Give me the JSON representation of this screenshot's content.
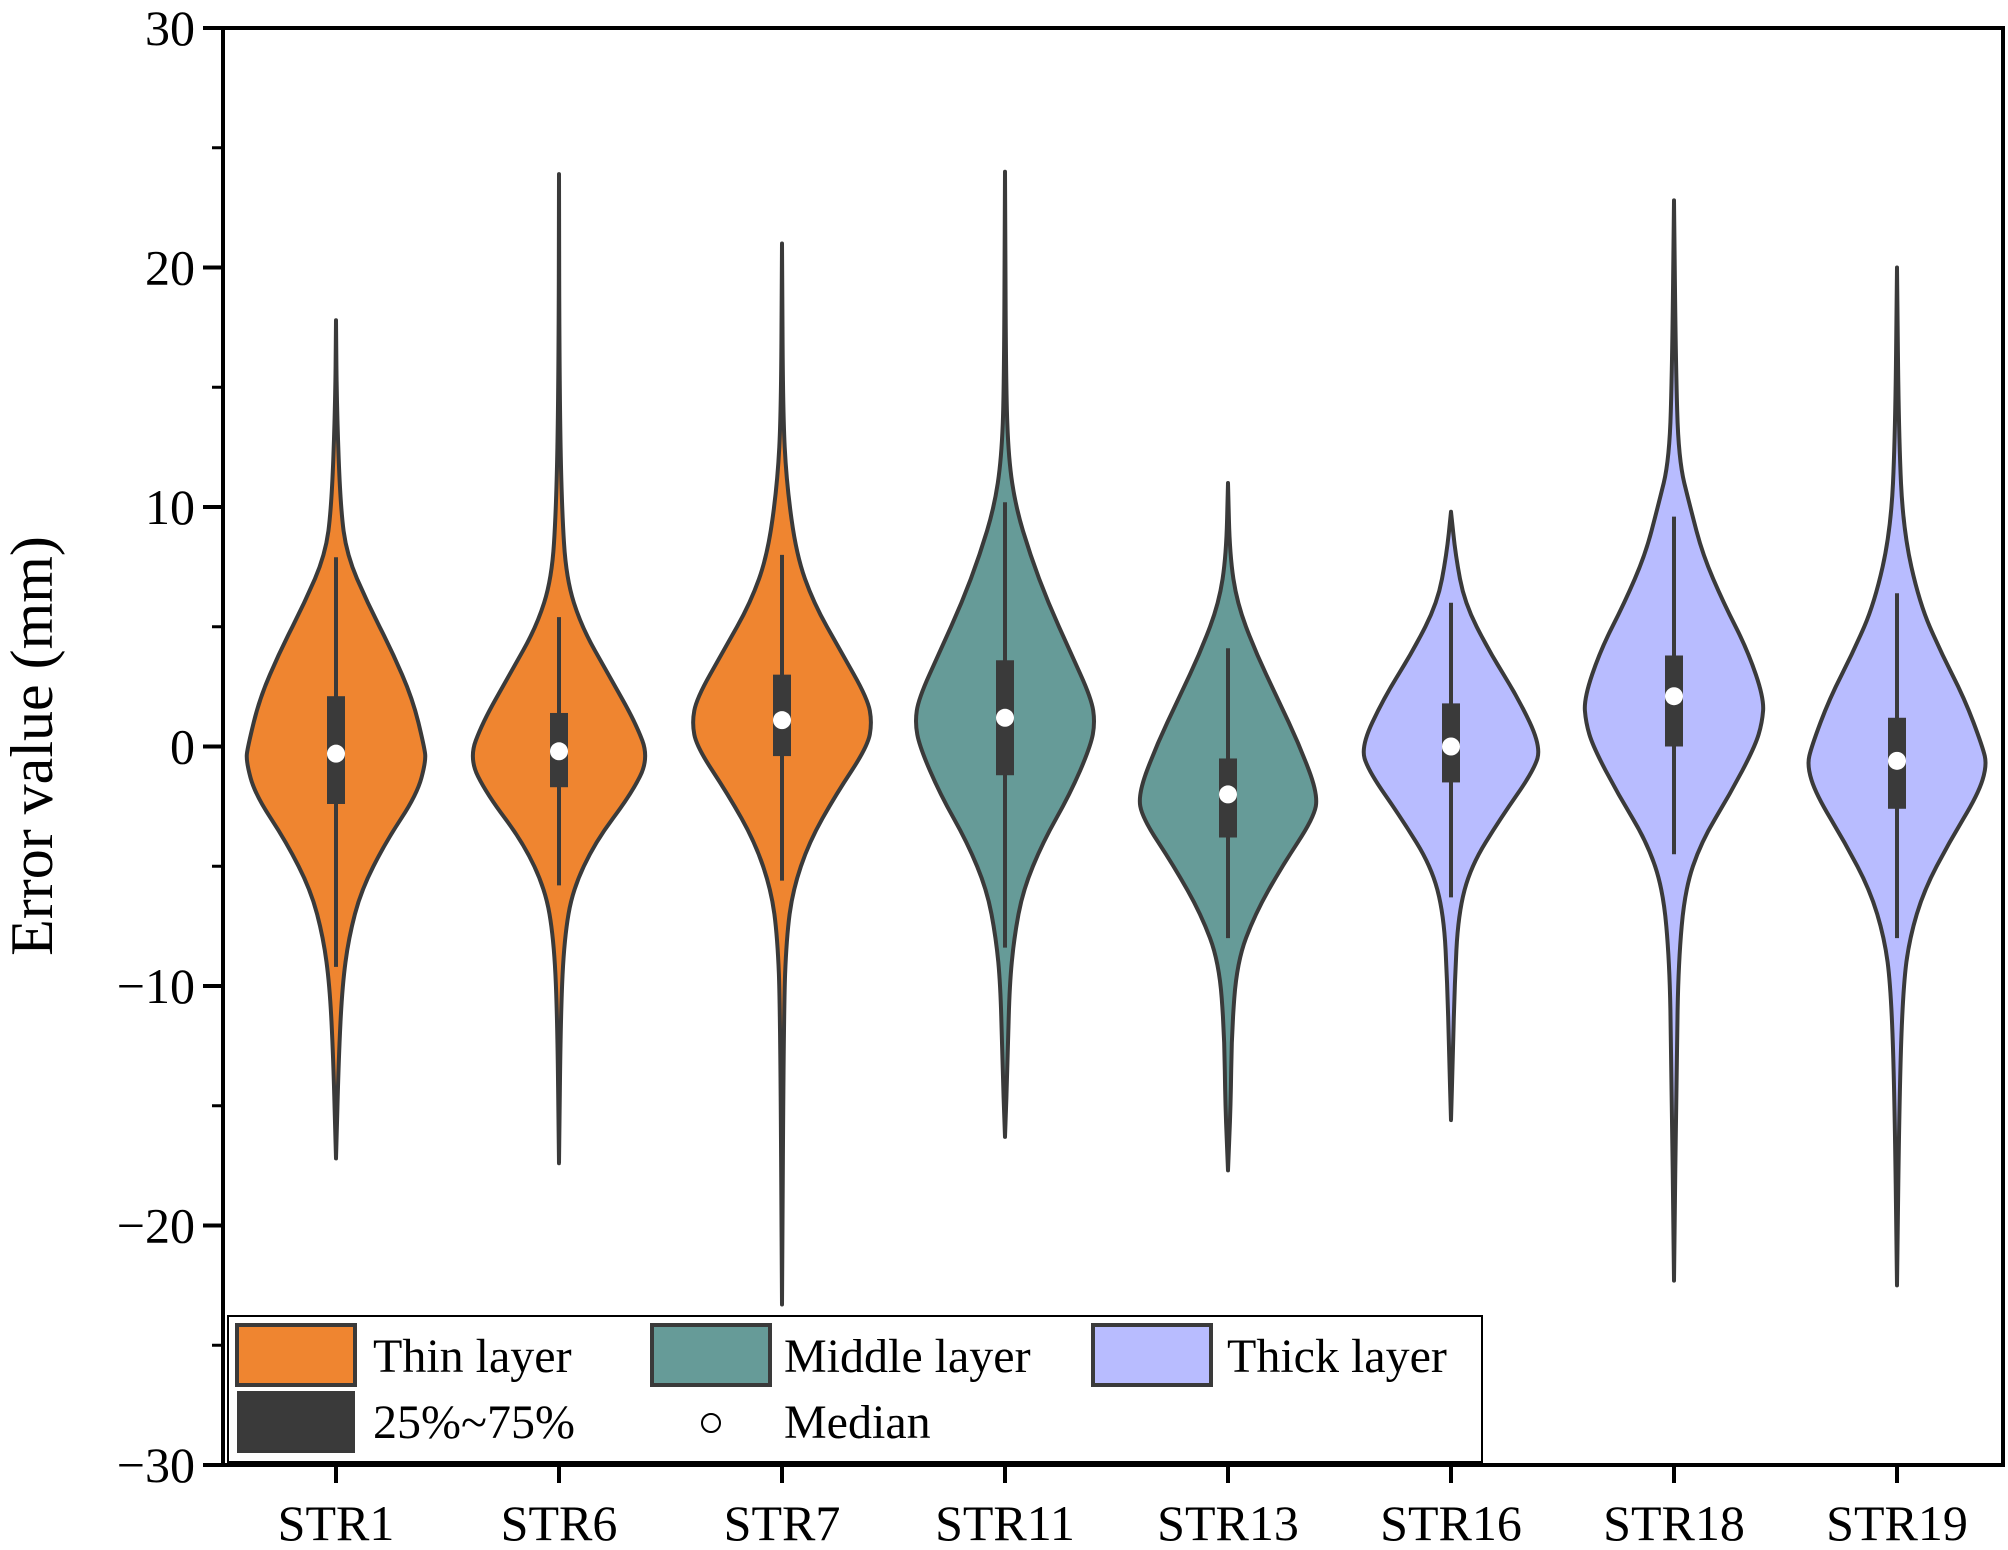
{
  "chart_data": {
    "type": "violin",
    "title": "",
    "xlabel": "",
    "ylabel": "Error value (mm)",
    "ylim": [
      -30,
      30
    ],
    "yticks": [
      30,
      20,
      10,
      0,
      -10,
      -20,
      -30
    ],
    "ytick_labels": [
      "30",
      "20",
      "10",
      "0",
      "−10",
      "−20",
      "−30"
    ],
    "grid": false,
    "legend_position": "bottom-left",
    "categories": [
      "STR1",
      "STR6",
      "STR7",
      "STR11",
      "STR13",
      "STR16",
      "STR18",
      "STR19"
    ],
    "groups": [
      "Thin layer",
      "Thin layer",
      "Thin layer",
      "Middle layer",
      "Middle layer",
      "Thick layer",
      "Thick layer",
      "Thick layer"
    ],
    "colors": {
      "Thin layer": "#ef8530",
      "Middle layer": "#669b98",
      "Thick layer": "#b8bcff",
      "outline": "#3a3a3a",
      "box": "#3a3a3a",
      "median": "#ffffff"
    },
    "series": [
      {
        "category": "STR1",
        "min": -17.2,
        "max": 17.8,
        "q1": -2.4,
        "median": -0.3,
        "q3": 2.1,
        "whisker_low": -9.2,
        "whisker_high": 7.9,
        "profile": [
          [
            17.8,
            0.0
          ],
          [
            14,
            0.01
          ],
          [
            10,
            0.05
          ],
          [
            8,
            0.12
          ],
          [
            6,
            0.35
          ],
          [
            4,
            0.62
          ],
          [
            2,
            0.85
          ],
          [
            0,
            0.98
          ],
          [
            -0.6,
            1.0
          ],
          [
            -2,
            0.9
          ],
          [
            -4,
            0.55
          ],
          [
            -6,
            0.28
          ],
          [
            -8,
            0.14
          ],
          [
            -10,
            0.07
          ],
          [
            -13,
            0.03
          ],
          [
            -17.2,
            0.0
          ]
        ]
      },
      {
        "category": "STR6",
        "min": -17.4,
        "max": 23.9,
        "q1": -1.7,
        "median": -0.2,
        "q3": 1.4,
        "whisker_low": -5.8,
        "whisker_high": 5.4,
        "profile": [
          [
            23.9,
            0.0
          ],
          [
            15,
            0.005
          ],
          [
            10,
            0.03
          ],
          [
            7,
            0.08
          ],
          [
            5,
            0.25
          ],
          [
            3,
            0.55
          ],
          [
            1,
            0.85
          ],
          [
            -0.5,
            1.0
          ],
          [
            -2,
            0.8
          ],
          [
            -4,
            0.4
          ],
          [
            -6,
            0.15
          ],
          [
            -8,
            0.06
          ],
          [
            -11,
            0.02
          ],
          [
            -17.4,
            0.0
          ]
        ]
      },
      {
        "category": "STR7",
        "min": -23.3,
        "max": 21.0,
        "q1": -0.4,
        "median": 1.1,
        "q3": 3.0,
        "whisker_low": -5.6,
        "whisker_high": 8.0,
        "profile": [
          [
            21.0,
            0.0
          ],
          [
            14,
            0.01
          ],
          [
            11,
            0.05
          ],
          [
            8,
            0.16
          ],
          [
            6,
            0.35
          ],
          [
            4,
            0.65
          ],
          [
            2,
            0.95
          ],
          [
            1,
            1.0
          ],
          [
            0,
            0.95
          ],
          [
            -2,
            0.6
          ],
          [
            -4,
            0.3
          ],
          [
            -6,
            0.12
          ],
          [
            -8,
            0.05
          ],
          [
            -11,
            0.02
          ],
          [
            -23.3,
            0.0
          ]
        ]
      },
      {
        "category": "STR11",
        "min": -16.3,
        "max": 24.0,
        "q1": -1.2,
        "median": 1.2,
        "q3": 3.6,
        "whisker_low": -8.4,
        "whisker_high": 10.2,
        "profile": [
          [
            24.0,
            0.0
          ],
          [
            15,
            0.01
          ],
          [
            12,
            0.04
          ],
          [
            10,
            0.12
          ],
          [
            8,
            0.28
          ],
          [
            6,
            0.48
          ],
          [
            4,
            0.72
          ],
          [
            2,
            0.96
          ],
          [
            1,
            1.0
          ],
          [
            0,
            0.95
          ],
          [
            -2,
            0.72
          ],
          [
            -4,
            0.42
          ],
          [
            -6,
            0.2
          ],
          [
            -8,
            0.1
          ],
          [
            -10,
            0.05
          ],
          [
            -13,
            0.03
          ],
          [
            -16.3,
            0.0
          ]
        ]
      },
      {
        "category": "STR13",
        "min": -17.7,
        "max": 11.0,
        "q1": -3.8,
        "median": -2.0,
        "q3": -0.5,
        "whisker_low": -8.0,
        "whisker_high": 4.1,
        "profile": [
          [
            11.0,
            0.0
          ],
          [
            8,
            0.02
          ],
          [
            6,
            0.1
          ],
          [
            4,
            0.3
          ],
          [
            2,
            0.55
          ],
          [
            0,
            0.8
          ],
          [
            -2,
            1.0
          ],
          [
            -3,
            0.95
          ],
          [
            -5,
            0.6
          ],
          [
            -7,
            0.3
          ],
          [
            -9,
            0.1
          ],
          [
            -12,
            0.04
          ],
          [
            -15,
            0.03
          ],
          [
            -17.7,
            0.0
          ]
        ]
      },
      {
        "category": "STR16",
        "min": -15.6,
        "max": 9.8,
        "q1": -1.5,
        "median": 0.0,
        "q3": 1.8,
        "whisker_low": -6.3,
        "whisker_high": 6.0,
        "profile": [
          [
            9.8,
            0.0
          ],
          [
            8,
            0.05
          ],
          [
            6,
            0.15
          ],
          [
            4,
            0.42
          ],
          [
            2,
            0.75
          ],
          [
            0,
            1.0
          ],
          [
            -1,
            0.92
          ],
          [
            -3,
            0.55
          ],
          [
            -5,
            0.22
          ],
          [
            -7,
            0.08
          ],
          [
            -10,
            0.04
          ],
          [
            -13,
            0.02
          ],
          [
            -15.6,
            0.0
          ]
        ]
      },
      {
        "category": "STR18",
        "min": -22.3,
        "max": 22.8,
        "q1": 0.0,
        "median": 2.1,
        "q3": 3.8,
        "whisker_low": -4.5,
        "whisker_high": 9.6,
        "profile": [
          [
            22.8,
            0.0
          ],
          [
            16,
            0.02
          ],
          [
            12,
            0.05
          ],
          [
            10,
            0.18
          ],
          [
            8,
            0.32
          ],
          [
            6,
            0.55
          ],
          [
            4,
            0.82
          ],
          [
            2,
            1.0
          ],
          [
            1,
            0.98
          ],
          [
            0,
            0.9
          ],
          [
            -2,
            0.62
          ],
          [
            -4,
            0.3
          ],
          [
            -6,
            0.12
          ],
          [
            -9,
            0.05
          ],
          [
            -13,
            0.03
          ],
          [
            -22.3,
            0.0
          ]
        ]
      },
      {
        "category": "STR19",
        "min": -22.5,
        "max": 20.0,
        "q1": -2.6,
        "median": -0.6,
        "q3": 1.2,
        "whisker_low": -8.0,
        "whisker_high": 6.4,
        "profile": [
          [
            20.0,
            0.0
          ],
          [
            13,
            0.02
          ],
          [
            9,
            0.07
          ],
          [
            6,
            0.25
          ],
          [
            4,
            0.48
          ],
          [
            2,
            0.75
          ],
          [
            0,
            0.95
          ],
          [
            -0.8,
            1.0
          ],
          [
            -2,
            0.9
          ],
          [
            -4,
            0.58
          ],
          [
            -6,
            0.3
          ],
          [
            -8,
            0.14
          ],
          [
            -10,
            0.07
          ],
          [
            -14,
            0.03
          ],
          [
            -22.5,
            0.0
          ]
        ]
      }
    ]
  },
  "legend": {
    "items": [
      {
        "label": "Thin layer",
        "kind": "swatch",
        "color": "#ef8530"
      },
      {
        "label": "Middle layer",
        "kind": "swatch",
        "color": "#669b98"
      },
      {
        "label": "Thick layer",
        "kind": "swatch",
        "color": "#b8bcff"
      },
      {
        "label": "25%~75%",
        "kind": "box",
        "color": "#3a3a3a"
      },
      {
        "label": "Median",
        "kind": "circle",
        "color": "#ffffff"
      }
    ]
  }
}
